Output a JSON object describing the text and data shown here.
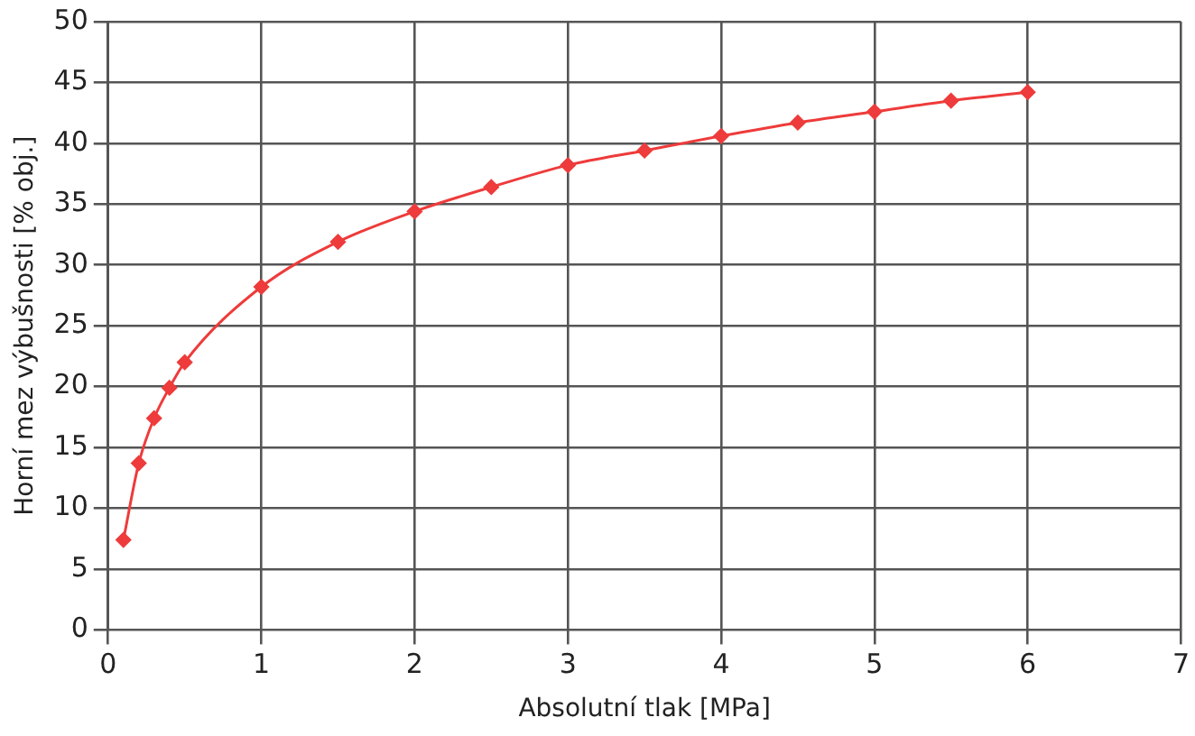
{
  "chart_data": {
    "type": "line",
    "xlabel": "Absolutní tlak [MPa]",
    "ylabel": "Horní mez výbušnosti [% obj.]",
    "x": [
      0.1,
      0.2,
      0.3,
      0.4,
      0.5,
      1,
      1.5,
      2,
      2.5,
      3,
      3.5,
      4,
      4.5,
      5,
      5.5,
      6
    ],
    "series": [
      {
        "color": "#ee3b3b",
        "values": [
          7.4,
          13.7,
          17.4,
          19.9,
          22.0,
          28.2,
          31.9,
          34.4,
          36.4,
          38.2,
          39.4,
          40.6,
          41.7,
          42.6,
          43.5,
          44.2
        ]
      }
    ],
    "xlim": [
      0,
      7
    ],
    "xticks": [
      0,
      1,
      2,
      3,
      4,
      5,
      6,
      7
    ],
    "ylim": [
      0,
      50
    ],
    "yticks": [
      0,
      5,
      10,
      15,
      20,
      25,
      30,
      35,
      40,
      45,
      50
    ],
    "grid": true,
    "legend": false,
    "marker": "diamond",
    "line_style": "solid"
  }
}
